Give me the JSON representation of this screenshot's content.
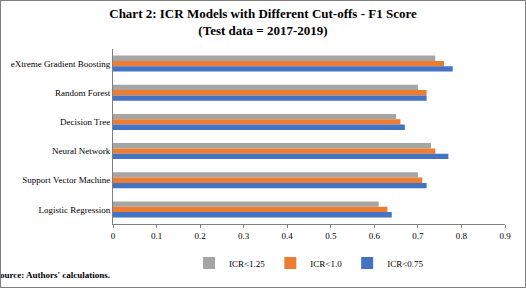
{
  "chart_data": {
    "type": "bar",
    "orientation": "horizontal",
    "title": "Chart 2: ICR Models with Different Cut-offs - F1 Score",
    "subtitle": "(Test data = 2017-2019)",
    "source": "Source: Authors' calculations.",
    "categories": [
      "eXtreme Gradient Boosting",
      "Random Forest",
      "Decision Tree",
      "Neural Network",
      "Support Vector Machine",
      "Logistic Regression"
    ],
    "series": [
      {
        "name": "ICR<1.25",
        "color": "#a5a5a5",
        "values": [
          0.74,
          0.7,
          0.65,
          0.73,
          0.7,
          0.61
        ]
      },
      {
        "name": "ICR<1.0",
        "color": "#ed7d31",
        "values": [
          0.76,
          0.72,
          0.66,
          0.74,
          0.71,
          0.63
        ]
      },
      {
        "name": "ICR<0.75",
        "color": "#4472c4",
        "values": [
          0.78,
          0.72,
          0.67,
          0.77,
          0.72,
          0.64
        ]
      }
    ],
    "xlim": [
      0,
      0.9
    ],
    "xticks": [
      0,
      0.1,
      0.2,
      0.3,
      0.4,
      0.5,
      0.6,
      0.7,
      0.8,
      0.9
    ],
    "grid": false,
    "legend": "bottom"
  }
}
